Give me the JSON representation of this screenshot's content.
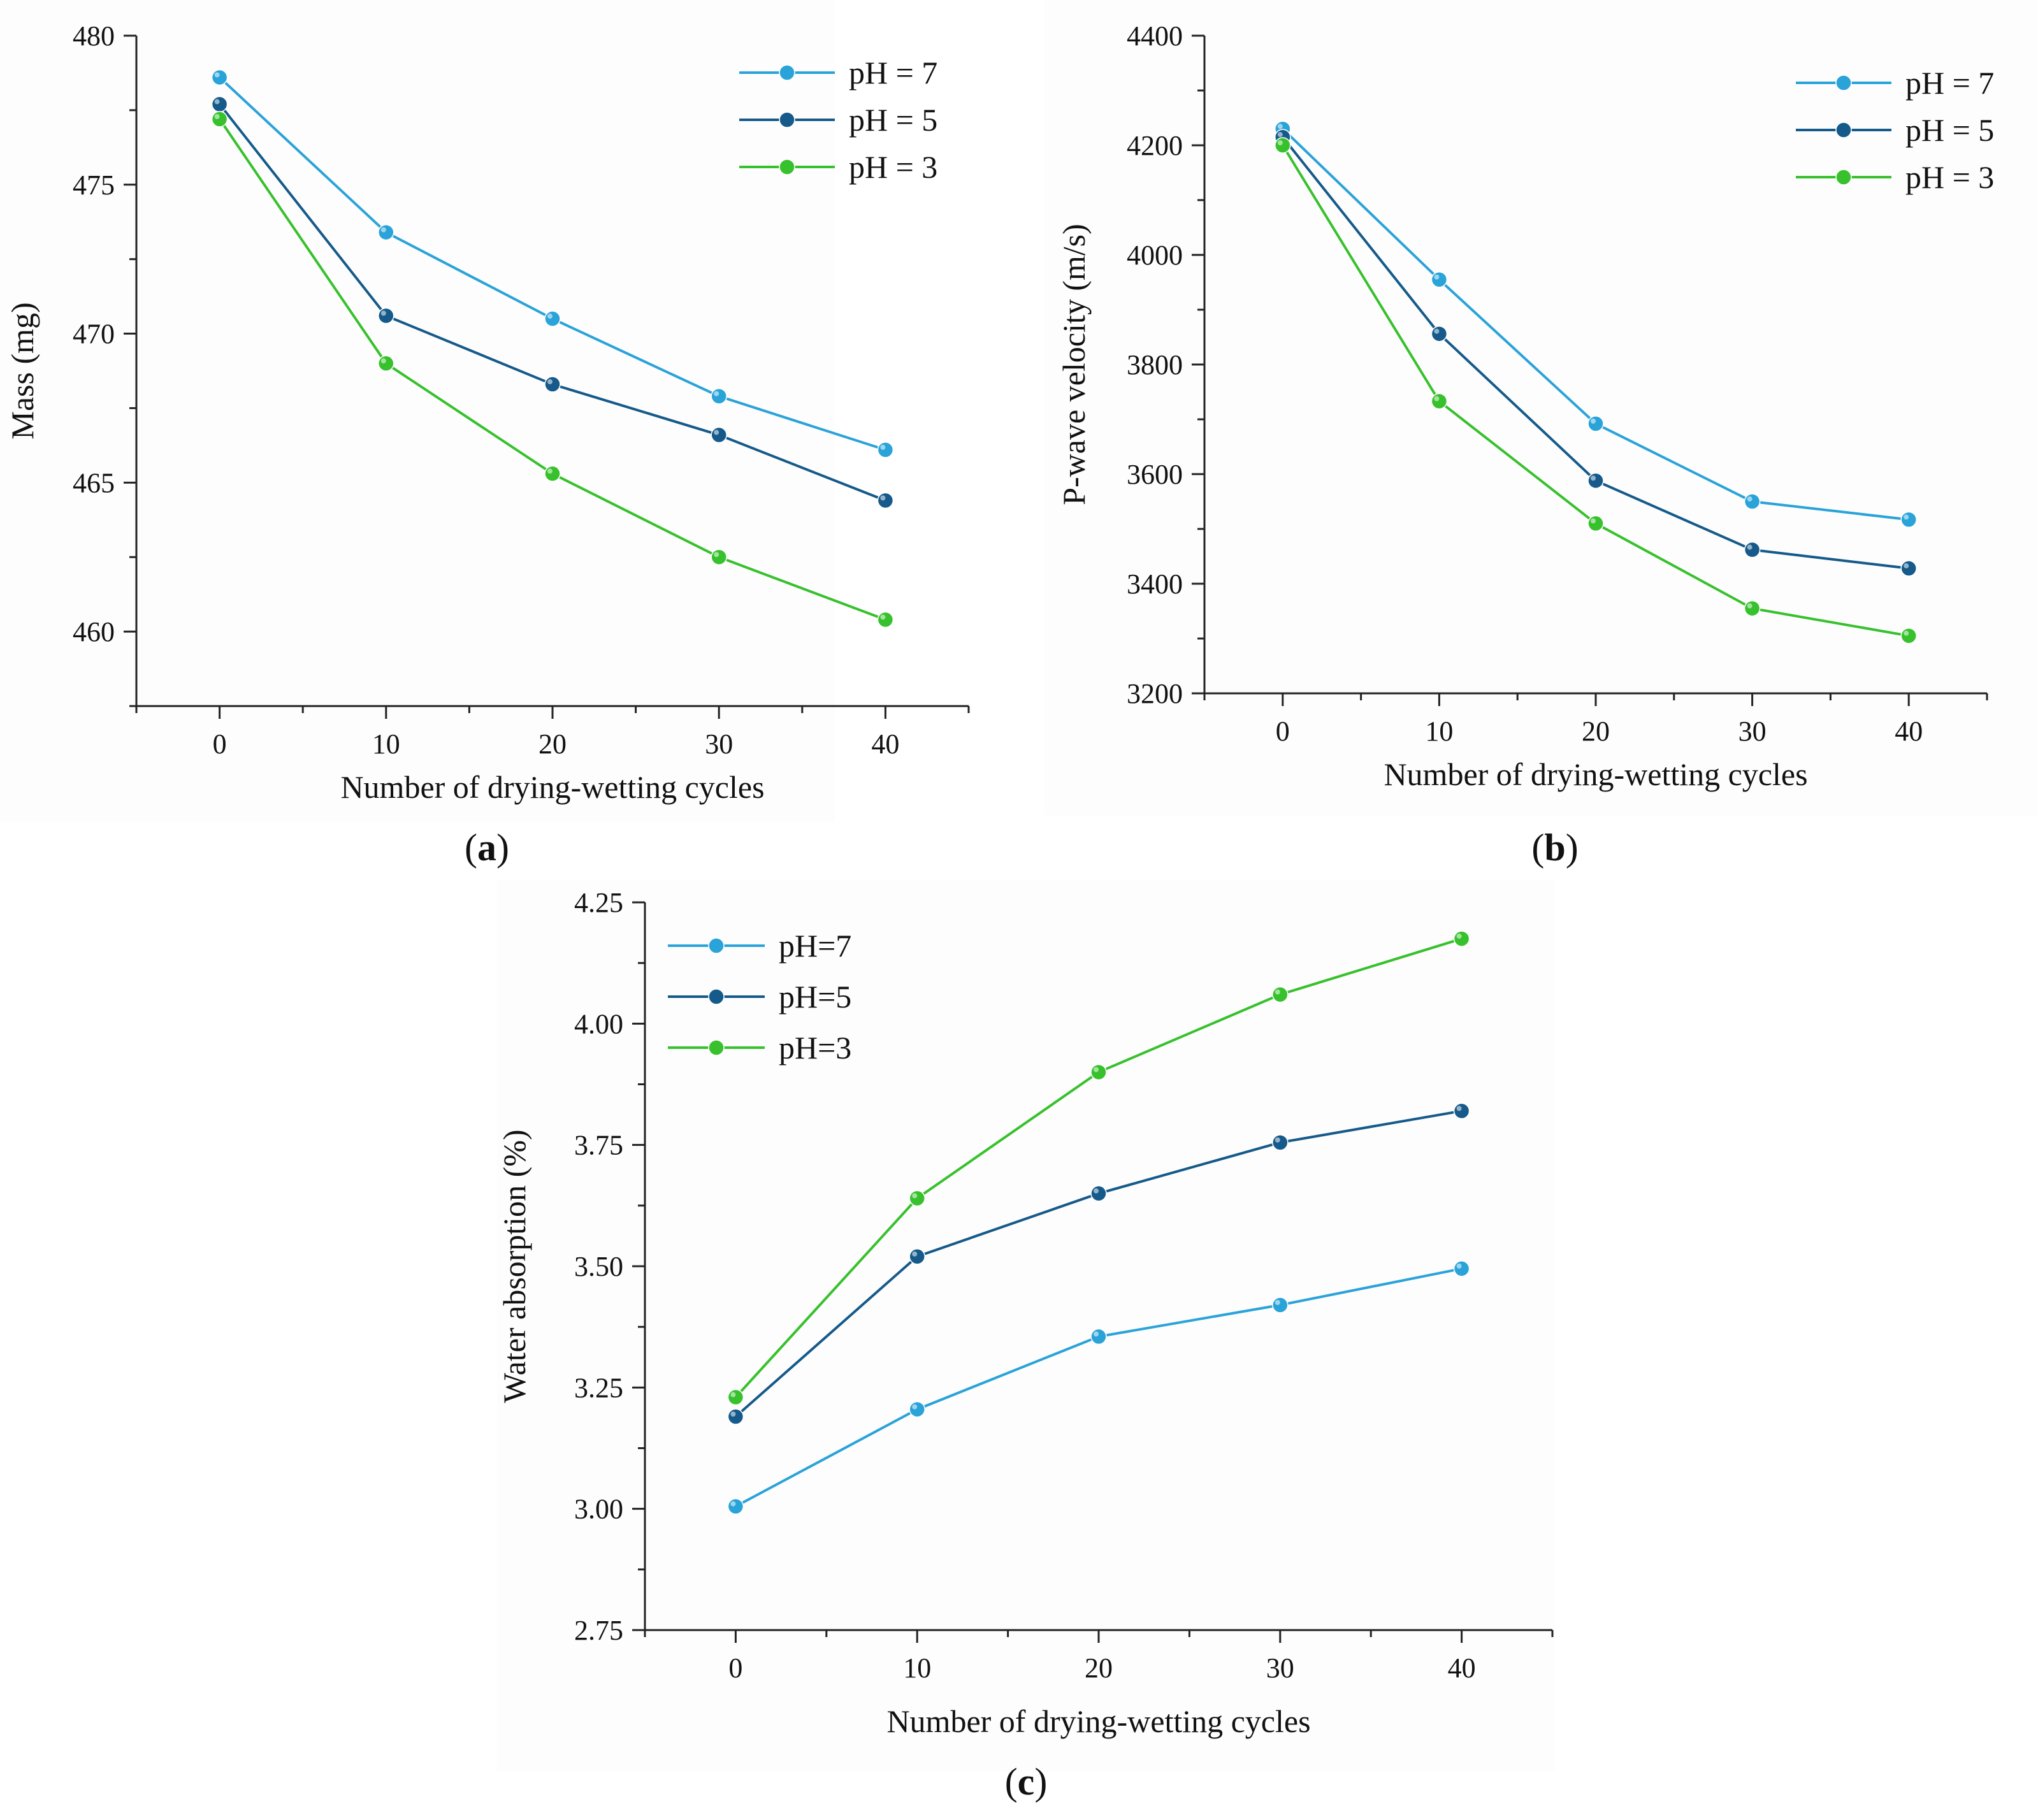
{
  "chart_data": [
    {
      "type": "line",
      "panel_label": "(a)",
      "panel_letter": "a",
      "xlabel": "Number of drying-wetting cycles",
      "ylabel": "Mass (mg)",
      "x": [
        0,
        10,
        20,
        30,
        40
      ],
      "xlim": [
        -5,
        45
      ],
      "ylim": [
        457.5,
        480
      ],
      "x_ticks": [
        0,
        10,
        20,
        30,
        40
      ],
      "y_ticks": [
        460,
        465,
        470,
        475,
        480
      ],
      "legend_position": "top-right",
      "series": [
        {
          "name": "pH = 7",
          "color": "#2aa3d9",
          "values": [
            478.6,
            473.4,
            470.5,
            467.9,
            466.1
          ]
        },
        {
          "name": "pH = 5",
          "color": "#155a8a",
          "values": [
            477.7,
            470.6,
            468.3,
            466.6,
            464.4
          ]
        },
        {
          "name": "pH = 3",
          "color": "#37c12c",
          "values": [
            477.2,
            469.0,
            465.3,
            462.5,
            460.4
          ]
        }
      ]
    },
    {
      "type": "line",
      "panel_label": "(b)",
      "panel_letter": "b",
      "xlabel": "Number of drying-wetting cycles",
      "ylabel": "P-wave velocity (m/s)",
      "x": [
        0,
        10,
        20,
        30,
        40
      ],
      "xlim": [
        -5,
        45
      ],
      "ylim": [
        3200,
        4400
      ],
      "x_ticks": [
        0,
        10,
        20,
        30,
        40
      ],
      "y_ticks": [
        3200,
        3400,
        3600,
        3800,
        4000,
        4200,
        4400
      ],
      "legend_position": "top-right",
      "series": [
        {
          "name": "pH = 7",
          "color": "#2aa3d9",
          "values": [
            4230,
            3955,
            3692,
            3550,
            3517
          ]
        },
        {
          "name": "pH = 5",
          "color": "#155a8a",
          "values": [
            4215,
            3856,
            3588,
            3462,
            3428
          ]
        },
        {
          "name": "pH = 3",
          "color": "#37c12c",
          "values": [
            4200,
            3733,
            3510,
            3355,
            3305
          ]
        }
      ]
    },
    {
      "type": "line",
      "panel_label": "(c)",
      "panel_letter": "c",
      "xlabel": "Number of drying-wetting cycles",
      "ylabel": "Water absorption (%)",
      "x": [
        0,
        10,
        20,
        30,
        40
      ],
      "xlim": [
        -5,
        45
      ],
      "ylim": [
        2.75,
        4.25
      ],
      "x_ticks": [
        0,
        10,
        20,
        30,
        40
      ],
      "y_ticks": [
        2.75,
        3.0,
        3.25,
        3.5,
        3.75,
        4.0,
        4.25
      ],
      "y_tick_decimals": 2,
      "legend_position": "top-left",
      "series": [
        {
          "name": "pH=7",
          "color": "#2aa3d9",
          "values": [
            3.005,
            3.205,
            3.355,
            3.42,
            3.495
          ]
        },
        {
          "name": "pH=5",
          "color": "#155a8a",
          "values": [
            3.19,
            3.52,
            3.65,
            3.755,
            3.82
          ]
        },
        {
          "name": "pH=3",
          "color": "#37c12c",
          "values": [
            3.23,
            3.64,
            3.9,
            4.06,
            4.175
          ]
        }
      ]
    }
  ]
}
